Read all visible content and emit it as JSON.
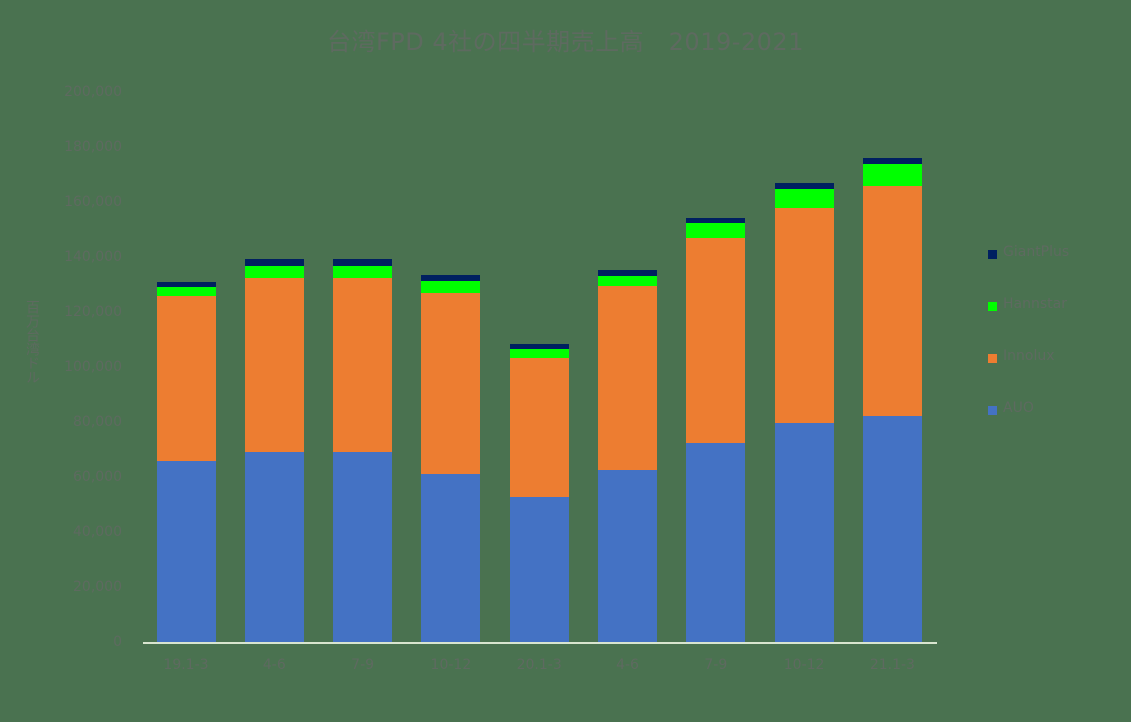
{
  "chart_data": {
    "type": "bar",
    "stacked": true,
    "title": "台湾FPD 4社の四半期売上高　2019-2021",
    "xlabel": "",
    "ylabel": "百万台湾ドル",
    "ylim": [
      0,
      200000
    ],
    "yticks": [
      "200,000",
      "180,000",
      "160,000",
      "140,000",
      "120,000",
      "100,000",
      "80,000",
      "60,000",
      "40,000",
      "20,000",
      "0"
    ],
    "grid": false,
    "legend_position": "right",
    "categories": [
      "19.1-3",
      "4-6",
      "7-9",
      "10-12",
      "20.1-3",
      "4-6",
      "7-9",
      "10-12",
      "21.1-3"
    ],
    "series": [
      {
        "name": "AUO",
        "color": "#4472c4",
        "values": [
          66200,
          69500,
          69500,
          61500,
          53100,
          62900,
          72700,
          80000,
          82500
        ]
      },
      {
        "name": "Innolux",
        "color": "#ed7d31",
        "values": [
          60000,
          63200,
          63200,
          65800,
          50500,
          66900,
          74600,
          78200,
          83700
        ]
      },
      {
        "name": "Hannstar",
        "color": "#00ff00",
        "values": [
          3300,
          4400,
          4400,
          4300,
          3300,
          3700,
          5400,
          6900,
          8000
        ]
      },
      {
        "name": "GiantPlus",
        "color": "#002060",
        "values": [
          1800,
          2500,
          2500,
          2200,
          1800,
          2100,
          1800,
          2200,
          2200
        ]
      }
    ],
    "legend_order": [
      "GiantPlus",
      "Hannstar",
      "Innolux",
      "AUO"
    ]
  }
}
